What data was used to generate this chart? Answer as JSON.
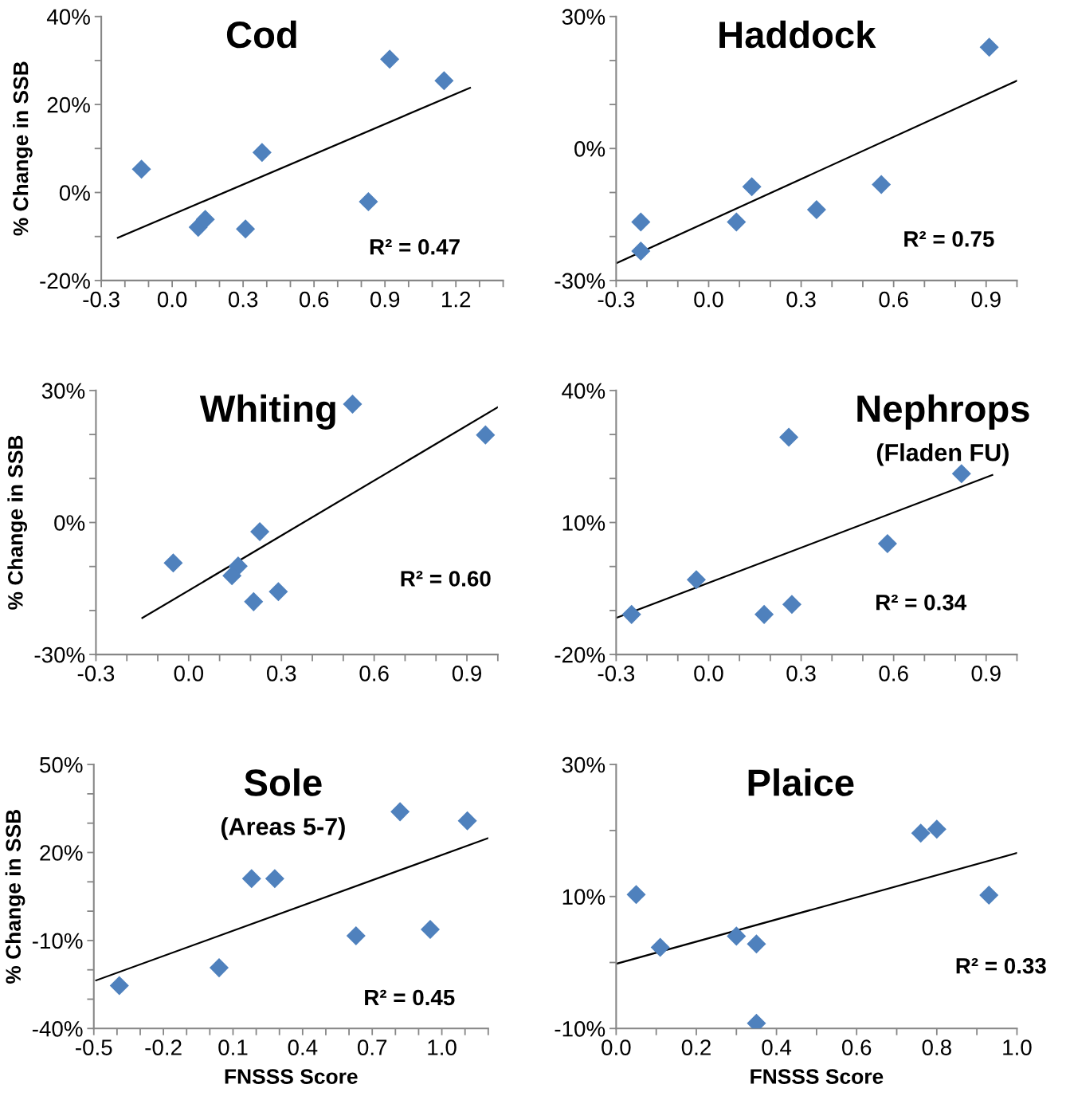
{
  "chart_data": [
    {
      "type": "scatter",
      "title": "Cod",
      "ylabel": "% Change in SSB",
      "annotations": [
        "R² = 0.47"
      ],
      "grid": false,
      "legend": false,
      "xlim": [
        -0.3,
        1.4
      ],
      "ylim": [
        -20,
        40
      ],
      "xticks": [
        {
          "value": -0.3,
          "label": "-0.3"
        },
        {
          "value": -0.2,
          "label": null
        },
        {
          "value": -0.1,
          "label": null
        },
        {
          "value": 0.0,
          "label": "0.0"
        },
        {
          "value": 0.1,
          "label": null
        },
        {
          "value": 0.2,
          "label": null
        },
        {
          "value": 0.3,
          "label": "0.3"
        },
        {
          "value": 0.4,
          "label": null
        },
        {
          "value": 0.5,
          "label": null
        },
        {
          "value": 0.6,
          "label": "0.6"
        },
        {
          "value": 0.7,
          "label": null
        },
        {
          "value": 0.8,
          "label": null
        },
        {
          "value": 0.9,
          "label": "0.9"
        },
        {
          "value": 1.0,
          "label": null
        },
        {
          "value": 1.1,
          "label": null
        },
        {
          "value": 1.2,
          "label": "1.2"
        },
        {
          "value": 1.3,
          "label": null
        },
        {
          "value": 1.4,
          "label": null
        }
      ],
      "yticks": [
        {
          "value": -20,
          "label": "-20%"
        },
        {
          "value": -10,
          "label": null
        },
        {
          "value": 0,
          "label": "0%"
        },
        {
          "value": 10,
          "label": null
        },
        {
          "value": 20,
          "label": "20%"
        },
        {
          "value": 30,
          "label": null
        },
        {
          "value": 40,
          "label": "40%"
        }
      ],
      "series": [
        {
          "type": "scatter",
          "color": "#4f81bd",
          "marker": "diamond",
          "x": [
            -0.13,
            0.92,
            1.15,
            0.38,
            0.83,
            0.11,
            0.14,
            0.31
          ],
          "values": [
            5.3,
            30.3,
            25.4,
            9.1,
            -2.1,
            -7.9,
            -6.1,
            -8.3
          ]
        },
        {
          "type": "line",
          "color": "#000000",
          "line_style": "solid",
          "marker": "none",
          "x": [
            -0.23,
            1.26
          ],
          "values": [
            -10.3,
            23.8
          ]
        }
      ]
    },
    {
      "type": "scatter",
      "title": "Haddock",
      "annotations": [
        "R² = 0.75"
      ],
      "grid": false,
      "legend": false,
      "xlim": [
        -0.3,
        1.0
      ],
      "ylim": [
        -30,
        30
      ],
      "xticks": [
        {
          "value": -0.3,
          "label": "-0.3"
        },
        {
          "value": -0.2,
          "label": null
        },
        {
          "value": -0.1,
          "label": null
        },
        {
          "value": 0.0,
          "label": "0.0"
        },
        {
          "value": 0.1,
          "label": null
        },
        {
          "value": 0.2,
          "label": null
        },
        {
          "value": 0.3,
          "label": "0.3"
        },
        {
          "value": 0.4,
          "label": null
        },
        {
          "value": 0.5,
          "label": null
        },
        {
          "value": 0.6,
          "label": "0.6"
        },
        {
          "value": 0.7,
          "label": null
        },
        {
          "value": 0.8,
          "label": null
        },
        {
          "value": 0.9,
          "label": "0.9"
        },
        {
          "value": 1.0,
          "label": null
        }
      ],
      "yticks": [
        {
          "value": -30,
          "label": "-30%"
        },
        {
          "value": -20,
          "label": null
        },
        {
          "value": -10,
          "label": null
        },
        {
          "value": 0,
          "label": "0%"
        },
        {
          "value": 10,
          "label": null
        },
        {
          "value": 20,
          "label": null
        },
        {
          "value": 30,
          "label": "30%"
        }
      ],
      "series": [
        {
          "type": "scatter",
          "color": "#4f81bd",
          "marker": "diamond",
          "x": [
            -0.22,
            -0.22,
            0.09,
            0.14,
            0.35,
            0.56,
            0.91
          ],
          "values": [
            -16.7,
            -23.3,
            -16.7,
            -8.7,
            -13.9,
            -8.2,
            23.0
          ]
        },
        {
          "type": "line",
          "color": "#000000",
          "line_style": "solid",
          "marker": "none",
          "x": [
            -0.3,
            1.0
          ],
          "values": [
            -26.1,
            15.4
          ]
        }
      ]
    },
    {
      "type": "scatter",
      "title": "Whiting",
      "ylabel": "% Change in SSB",
      "annotations": [
        "R² = 0.60"
      ],
      "grid": false,
      "legend": false,
      "xlim": [
        -0.3,
        1.0
      ],
      "ylim": [
        -30,
        30
      ],
      "xticks": [
        {
          "value": -0.3,
          "label": "-0.3"
        },
        {
          "value": -0.2,
          "label": null
        },
        {
          "value": -0.1,
          "label": null
        },
        {
          "value": 0.0,
          "label": "0.0"
        },
        {
          "value": 0.1,
          "label": null
        },
        {
          "value": 0.2,
          "label": null
        },
        {
          "value": 0.3,
          "label": "0.3"
        },
        {
          "value": 0.4,
          "label": null
        },
        {
          "value": 0.5,
          "label": null
        },
        {
          "value": 0.6,
          "label": "0.6"
        },
        {
          "value": 0.7,
          "label": null
        },
        {
          "value": 0.8,
          "label": null
        },
        {
          "value": 0.9,
          "label": "0.9"
        },
        {
          "value": 1.0,
          "label": null
        }
      ],
      "yticks": [
        {
          "value": -30,
          "label": "-30%"
        },
        {
          "value": -20,
          "label": null
        },
        {
          "value": -10,
          "label": null
        },
        {
          "value": 0,
          "label": "0%"
        },
        {
          "value": 10,
          "label": null
        },
        {
          "value": 20,
          "label": null
        },
        {
          "value": 30,
          "label": "30%"
        }
      ],
      "series": [
        {
          "type": "scatter",
          "color": "#4f81bd",
          "marker": "diamond",
          "x": [
            0.53,
            0.96,
            0.23,
            -0.05,
            0.16,
            0.14,
            0.21,
            0.29
          ],
          "values": [
            26.9,
            19.9,
            -2.1,
            -9.2,
            -9.9,
            -12.1,
            -18.0,
            -15.7
          ]
        },
        {
          "type": "line",
          "color": "#000000",
          "line_style": "solid",
          "marker": "none",
          "x": [
            -0.15,
            1.0
          ],
          "values": [
            -21.7,
            26.2
          ]
        }
      ]
    },
    {
      "type": "scatter",
      "title": "Nephrops",
      "subtitle": "(Fladen FU)",
      "annotations": [
        "R² = 0.34"
      ],
      "grid": false,
      "legend": false,
      "xlim": [
        -0.3,
        1.0
      ],
      "ylim": [
        -20,
        40
      ],
      "xticks": [
        {
          "value": -0.3,
          "label": "-0.3"
        },
        {
          "value": -0.2,
          "label": null
        },
        {
          "value": -0.1,
          "label": null
        },
        {
          "value": 0.0,
          "label": "0.0"
        },
        {
          "value": 0.1,
          "label": null
        },
        {
          "value": 0.2,
          "label": null
        },
        {
          "value": 0.3,
          "label": "0.3"
        },
        {
          "value": 0.4,
          "label": null
        },
        {
          "value": 0.5,
          "label": null
        },
        {
          "value": 0.6,
          "label": "0.6"
        },
        {
          "value": 0.7,
          "label": null
        },
        {
          "value": 0.8,
          "label": null
        },
        {
          "value": 0.9,
          "label": "0.9"
        },
        {
          "value": 1.0,
          "label": null
        }
      ],
      "yticks": [
        {
          "value": -20,
          "label": "-20%"
        },
        {
          "value": -10,
          "label": null
        },
        {
          "value": 0,
          "label": null
        },
        {
          "value": 10,
          "label": "10%"
        },
        {
          "value": 20,
          "label": null
        },
        {
          "value": 30,
          "label": null
        },
        {
          "value": 40,
          "label": "40%"
        }
      ],
      "series": [
        {
          "type": "scatter",
          "color": "#4f81bd",
          "marker": "diamond",
          "x": [
            0.26,
            0.82,
            0.58,
            -0.04,
            -0.25,
            0.18,
            0.27
          ],
          "values": [
            29.4,
            21.1,
            5.2,
            -3.0,
            -10.9,
            -10.9,
            -8.6
          ]
        },
        {
          "type": "line",
          "color": "#000000",
          "line_style": "solid",
          "marker": "none",
          "x": [
            -0.3,
            0.92
          ],
          "values": [
            -11.7,
            20.8
          ]
        }
      ]
    },
    {
      "type": "scatter",
      "title": "Sole",
      "subtitle": "(Areas 5-7)",
      "ylabel": "% Change in SSB",
      "xlabel": "FNSSS Score",
      "annotations": [
        "R² = 0.45"
      ],
      "grid": false,
      "legend": false,
      "xlim": [
        -0.5,
        1.2
      ],
      "ylim": [
        -40,
        50
      ],
      "xticks": [
        {
          "value": -0.5,
          "label": "-0.5"
        },
        {
          "value": -0.4,
          "label": null
        },
        {
          "value": -0.3,
          "label": null
        },
        {
          "value": -0.2,
          "label": "-0.2"
        },
        {
          "value": -0.1,
          "label": null
        },
        {
          "value": 0.0,
          "label": null
        },
        {
          "value": 0.1,
          "label": "0.1"
        },
        {
          "value": 0.2,
          "label": null
        },
        {
          "value": 0.3,
          "label": null
        },
        {
          "value": 0.4,
          "label": "0.4"
        },
        {
          "value": 0.5,
          "label": null
        },
        {
          "value": 0.6,
          "label": null
        },
        {
          "value": 0.7,
          "label": "0.7"
        },
        {
          "value": 0.8,
          "label": null
        },
        {
          "value": 0.9,
          "label": null
        },
        {
          "value": 1.0,
          "label": "1.0"
        },
        {
          "value": 1.1,
          "label": null
        },
        {
          "value": 1.2,
          "label": null
        }
      ],
      "yticks": [
        {
          "value": -40,
          "label": "-40%"
        },
        {
          "value": -30,
          "label": null
        },
        {
          "value": -20,
          "label": null
        },
        {
          "value": -10,
          "label": "-10%"
        },
        {
          "value": 0,
          "label": null
        },
        {
          "value": 10,
          "label": null
        },
        {
          "value": 20,
          "label": "20%"
        },
        {
          "value": 30,
          "label": null
        },
        {
          "value": 40,
          "label": null
        },
        {
          "value": 50,
          "label": "50%"
        }
      ],
      "series": [
        {
          "type": "scatter",
          "color": "#4f81bd",
          "marker": "diamond",
          "x": [
            -0.39,
            0.04,
            0.18,
            0.28,
            0.63,
            0.95,
            0.82,
            1.11
          ],
          "values": [
            -25.4,
            -19.3,
            11.1,
            11.1,
            -8.4,
            -6.2,
            33.9,
            30.8
          ]
        },
        {
          "type": "line",
          "color": "#000000",
          "line_style": "solid",
          "marker": "none",
          "x": [
            -0.49,
            1.2
          ],
          "values": [
            -23.6,
            24.9
          ]
        }
      ]
    },
    {
      "type": "scatter",
      "title": "Plaice",
      "xlabel": "FNSSS Score",
      "annotations": [
        "R² = 0.33"
      ],
      "grid": false,
      "legend": false,
      "xlim": [
        0.0,
        1.0
      ],
      "ylim": [
        -10,
        30
      ],
      "xticks": [
        {
          "value": 0.0,
          "label": "0.0"
        },
        {
          "value": 0.1,
          "label": null
        },
        {
          "value": 0.2,
          "label": "0.2"
        },
        {
          "value": 0.3,
          "label": null
        },
        {
          "value": 0.4,
          "label": "0.4"
        },
        {
          "value": 0.5,
          "label": null
        },
        {
          "value": 0.6,
          "label": "0.6"
        },
        {
          "value": 0.7,
          "label": null
        },
        {
          "value": 0.8,
          "label": "0.8"
        },
        {
          "value": 0.9,
          "label": null
        },
        {
          "value": 1.0,
          "label": "1.0"
        }
      ],
      "yticks": [
        {
          "value": -10,
          "label": "-10%"
        },
        {
          "value": 0,
          "label": null
        },
        {
          "value": 10,
          "label": "10%"
        },
        {
          "value": 20,
          "label": null
        },
        {
          "value": 30,
          "label": "30%"
        }
      ],
      "series": [
        {
          "type": "scatter",
          "color": "#4f81bd",
          "marker": "diamond",
          "x": [
            0.05,
            0.11,
            0.3,
            0.35,
            0.35,
            0.76,
            0.8,
            0.93
          ],
          "values": [
            10.3,
            2.3,
            4.0,
            2.8,
            -9.2,
            19.6,
            20.2,
            10.2
          ]
        },
        {
          "type": "line",
          "color": "#000000",
          "line_style": "solid",
          "marker": "none",
          "x": [
            0.0,
            1.0
          ],
          "values": [
            -0.2,
            16.6
          ]
        }
      ]
    }
  ]
}
